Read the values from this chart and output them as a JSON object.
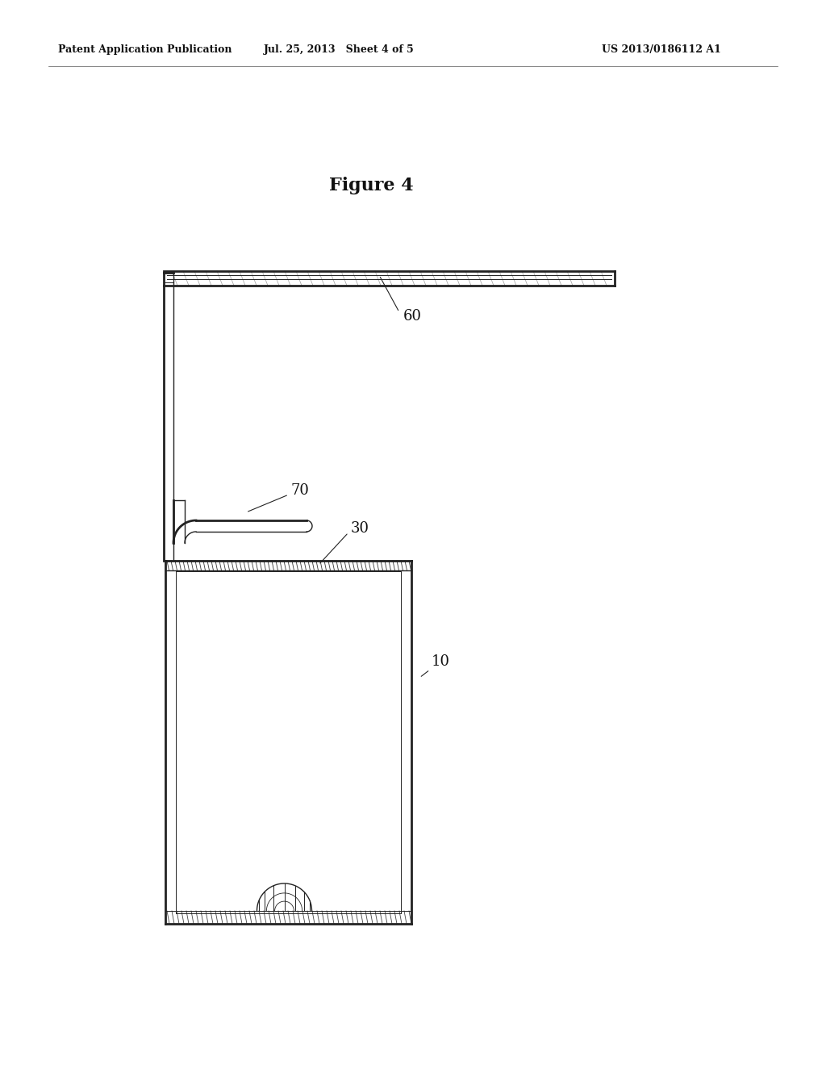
{
  "bg_color": "#ffffff",
  "header_left": "Patent Application Publication",
  "header_mid": "Jul. 25, 2013   Sheet 4 of 5",
  "header_right": "US 2013/0186112 A1",
  "figure_title": "Figure 4",
  "label_60": "60",
  "label_70": "70",
  "label_30": "30",
  "label_10": "10",
  "line_color": "#222222",
  "lw_outer": 2.0,
  "lw_inner": 1.0,
  "lw_thin": 0.7
}
